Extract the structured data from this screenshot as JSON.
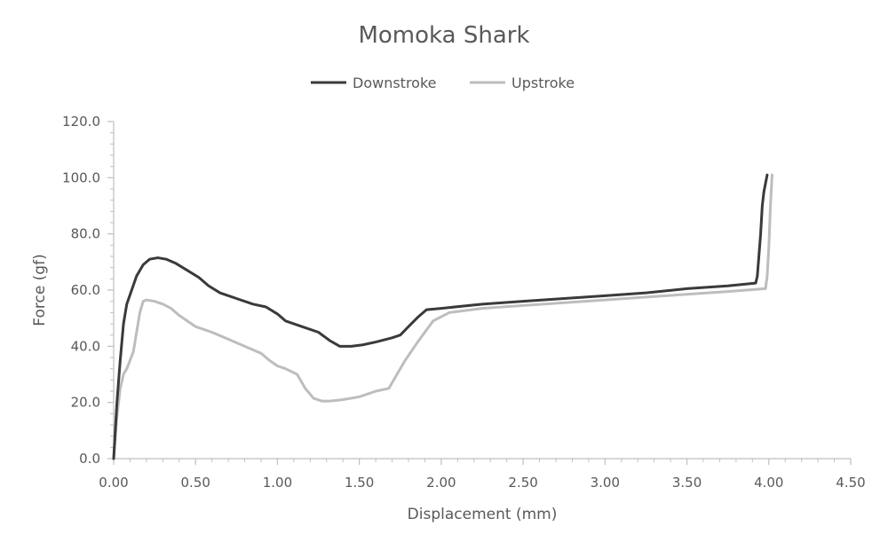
{
  "chart_data": {
    "type": "line",
    "title": "Momoka Shark",
    "xlabel": "Displacement (mm)",
    "ylabel": "Force (gf)",
    "xlim": [
      0,
      4.5
    ],
    "ylim": [
      0,
      120
    ],
    "x_ticks": [
      "0.00",
      "0.50",
      "1.00",
      "1.50",
      "2.00",
      "2.50",
      "3.00",
      "3.50",
      "4.00",
      "4.50"
    ],
    "y_ticks": [
      "0.0",
      "20.0",
      "40.0",
      "60.0",
      "80.0",
      "100.0",
      "120.0"
    ],
    "grid": false,
    "legend": "top-center",
    "series": [
      {
        "name": "Downstroke",
        "color": "#3a3a3a",
        "points": [
          [
            0,
            0
          ],
          [
            0.02,
            20
          ],
          [
            0.04,
            35
          ],
          [
            0.06,
            48
          ],
          [
            0.08,
            55
          ],
          [
            0.11,
            60
          ],
          [
            0.14,
            65
          ],
          [
            0.18,
            69
          ],
          [
            0.22,
            71
          ],
          [
            0.27,
            71.5
          ],
          [
            0.32,
            71
          ],
          [
            0.38,
            69.5
          ],
          [
            0.45,
            67
          ],
          [
            0.52,
            64.5
          ],
          [
            0.58,
            61.5
          ],
          [
            0.65,
            59
          ],
          [
            0.75,
            57
          ],
          [
            0.85,
            55
          ],
          [
            0.93,
            54
          ],
          [
            1.0,
            51.5
          ],
          [
            1.05,
            49
          ],
          [
            1.15,
            47
          ],
          [
            1.25,
            45
          ],
          [
            1.32,
            42
          ],
          [
            1.38,
            40
          ],
          [
            1.45,
            40
          ],
          [
            1.52,
            40.5
          ],
          [
            1.6,
            41.5
          ],
          [
            1.7,
            43
          ],
          [
            1.75,
            44
          ],
          [
            1.8,
            47
          ],
          [
            1.86,
            50.5
          ],
          [
            1.91,
            53
          ],
          [
            2.0,
            53.5
          ],
          [
            2.25,
            55
          ],
          [
            2.5,
            56
          ],
          [
            2.75,
            57
          ],
          [
            3.0,
            58
          ],
          [
            3.25,
            59
          ],
          [
            3.5,
            60.5
          ],
          [
            3.75,
            61.5
          ],
          [
            3.92,
            62.5
          ],
          [
            3.93,
            65
          ],
          [
            3.95,
            80
          ],
          [
            3.96,
            90
          ],
          [
            3.97,
            95
          ],
          [
            3.99,
            101
          ]
        ]
      },
      {
        "name": "Upstroke",
        "color": "#bdbdbd",
        "points": [
          [
            0,
            0
          ],
          [
            0.02,
            15
          ],
          [
            0.04,
            25
          ],
          [
            0.06,
            30
          ],
          [
            0.08,
            32
          ],
          [
            0.1,
            35
          ],
          [
            0.12,
            38
          ],
          [
            0.14,
            45
          ],
          [
            0.16,
            52
          ],
          [
            0.18,
            56
          ],
          [
            0.2,
            56.5
          ],
          [
            0.25,
            56
          ],
          [
            0.3,
            55
          ],
          [
            0.35,
            53.5
          ],
          [
            0.4,
            51
          ],
          [
            0.45,
            49
          ],
          [
            0.5,
            47
          ],
          [
            0.6,
            45
          ],
          [
            0.7,
            42.5
          ],
          [
            0.8,
            40
          ],
          [
            0.9,
            37.5
          ],
          [
            0.95,
            35
          ],
          [
            1.0,
            33
          ],
          [
            1.05,
            32
          ],
          [
            1.12,
            30
          ],
          [
            1.17,
            25
          ],
          [
            1.22,
            21.5
          ],
          [
            1.27,
            20.5
          ],
          [
            1.32,
            20.5
          ],
          [
            1.4,
            21
          ],
          [
            1.5,
            22
          ],
          [
            1.6,
            24
          ],
          [
            1.68,
            25
          ],
          [
            1.72,
            29
          ],
          [
            1.78,
            35
          ],
          [
            1.85,
            41
          ],
          [
            1.9,
            45
          ],
          [
            1.95,
            49
          ],
          [
            2.0,
            50.5
          ],
          [
            2.05,
            52
          ],
          [
            2.25,
            53.5
          ],
          [
            2.5,
            54.5
          ],
          [
            2.75,
            55.5
          ],
          [
            3.0,
            56.5
          ],
          [
            3.25,
            57.5
          ],
          [
            3.5,
            58.5
          ],
          [
            3.75,
            59.5
          ],
          [
            3.98,
            60.5
          ],
          [
            3.99,
            65
          ],
          [
            4.0,
            75
          ],
          [
            4.01,
            90
          ],
          [
            4.02,
            101
          ]
        ]
      }
    ]
  }
}
